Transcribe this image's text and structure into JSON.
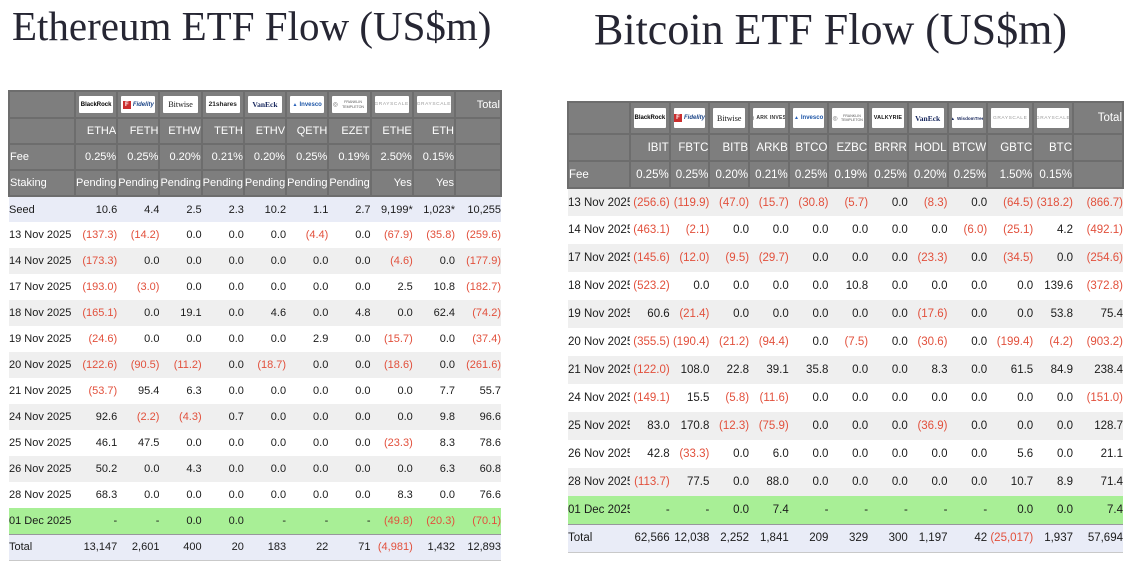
{
  "colors": {
    "header_bg": "#7e7e7e",
    "header_border": "#6d6d6d",
    "negative_red": "#e2503c",
    "row_alt_gray": "#efefef",
    "seed_total_lavender": "#e9ecf7",
    "highlight_green": "#a8ef96",
    "title_ink": "#262633"
  },
  "chart_data": [
    {
      "type": "table",
      "title": "Ethereum ETF Flow (US$m)",
      "total_header": "Total",
      "providers": [
        {
          "name": "BlackRock",
          "id": "blackrock"
        },
        {
          "name": "Fidelity",
          "id": "fidelity"
        },
        {
          "name": "Bitwise",
          "id": "bitwise"
        },
        {
          "name": "21shares",
          "id": "twentyone"
        },
        {
          "name": "VanEck",
          "id": "vaneck"
        },
        {
          "name": "Invesco",
          "id": "invesco"
        },
        {
          "name": "Franklin Templeton",
          "id": "franklin"
        },
        {
          "name": "Grayscale",
          "id": "grayscale"
        },
        {
          "name": "Grayscale",
          "id": "grayscale"
        }
      ],
      "tickers": [
        "ETHA",
        "FETH",
        "ETHW",
        "TETH",
        "ETHV",
        "QETH",
        "EZET",
        "ETHE",
        "ETH"
      ],
      "meta_rows": [
        {
          "label": "Fee",
          "values": [
            "0.25%",
            "0.25%",
            "0.20%",
            "0.21%",
            "0.20%",
            "0.25%",
            "0.19%",
            "2.50%",
            "0.15%"
          ],
          "total": ""
        },
        {
          "label": "Staking",
          "values": [
            "Pending",
            "Pending",
            "Pending",
            "Pending",
            "Pending",
            "Pending",
            "Pending",
            "Yes",
            "Yes"
          ],
          "total": ""
        }
      ],
      "rows": [
        {
          "label": "Seed",
          "values": [
            "10.6",
            "4.4",
            "2.5",
            "2.3",
            "10.2",
            "1.1",
            "2.7",
            "9,199*",
            "1,023*"
          ],
          "total": "10,255",
          "style": "seed"
        },
        {
          "label": "13 Nov 2025",
          "values": [
            "(137.3)",
            "(14.2)",
            "0.0",
            "0.0",
            "0.0",
            "(4.4)",
            "0.0",
            "(67.9)",
            "(35.8)"
          ],
          "total": "(259.6)"
        },
        {
          "label": "14 Nov 2025",
          "values": [
            "(173.3)",
            "0.0",
            "0.0",
            "0.0",
            "0.0",
            "0.0",
            "0.0",
            "(4.6)",
            "0.0"
          ],
          "total": "(177.9)"
        },
        {
          "label": "17 Nov 2025",
          "values": [
            "(193.0)",
            "(3.0)",
            "0.0",
            "0.0",
            "0.0",
            "0.0",
            "0.0",
            "2.5",
            "10.8"
          ],
          "total": "(182.7)"
        },
        {
          "label": "18 Nov 2025",
          "values": [
            "(165.1)",
            "0.0",
            "19.1",
            "0.0",
            "4.6",
            "0.0",
            "4.8",
            "0.0",
            "62.4"
          ],
          "total": "(74.2)"
        },
        {
          "label": "19 Nov 2025",
          "values": [
            "(24.6)",
            "0.0",
            "0.0",
            "0.0",
            "0.0",
            "2.9",
            "0.0",
            "(15.7)",
            "0.0"
          ],
          "total": "(37.4)"
        },
        {
          "label": "20 Nov 2025",
          "values": [
            "(122.6)",
            "(90.5)",
            "(11.2)",
            "0.0",
            "(18.7)",
            "0.0",
            "0.0",
            "(18.6)",
            "0.0"
          ],
          "total": "(261.6)"
        },
        {
          "label": "21 Nov 2025",
          "values": [
            "(53.7)",
            "95.4",
            "6.3",
            "0.0",
            "0.0",
            "0.0",
            "0.0",
            "0.0",
            "7.7"
          ],
          "total": "55.7"
        },
        {
          "label": "24 Nov 2025",
          "values": [
            "92.6",
            "(2.2)",
            "(4.3)",
            "0.7",
            "0.0",
            "0.0",
            "0.0",
            "0.0",
            "9.8"
          ],
          "total": "96.6"
        },
        {
          "label": "25 Nov 2025",
          "values": [
            "46.1",
            "47.5",
            "0.0",
            "0.0",
            "0.0",
            "0.0",
            "0.0",
            "(23.3)",
            "8.3"
          ],
          "total": "78.6"
        },
        {
          "label": "26 Nov 2025",
          "values": [
            "50.2",
            "0.0",
            "4.3",
            "0.0",
            "0.0",
            "0.0",
            "0.0",
            "0.0",
            "6.3"
          ],
          "total": "60.8"
        },
        {
          "label": "28 Nov 2025",
          "values": [
            "68.3",
            "0.0",
            "0.0",
            "0.0",
            "0.0",
            "0.0",
            "0.0",
            "8.3",
            "0.0"
          ],
          "total": "76.6"
        },
        {
          "label": "01 Dec 2025",
          "values": [
            "-",
            "-",
            "0.0",
            "0.0",
            "-",
            "-",
            "-",
            "(49.8)",
            "(20.3)"
          ],
          "total": "(70.1)",
          "style": "green"
        },
        {
          "label": "Total",
          "values": [
            "13,147",
            "2,601",
            "400",
            "20",
            "183",
            "22",
            "71",
            "(4,981)",
            "1,432"
          ],
          "total": "12,893",
          "style": "total"
        }
      ]
    },
    {
      "type": "table",
      "title": "Bitcoin ETF Flow (US$m)",
      "total_header": "Total",
      "providers": [
        {
          "name": "BlackRock",
          "id": "blackrock"
        },
        {
          "name": "Fidelity",
          "id": "fidelity"
        },
        {
          "name": "Bitwise",
          "id": "bitwise"
        },
        {
          "name": "ARK Invest",
          "id": "ark"
        },
        {
          "name": "Invesco",
          "id": "invesco"
        },
        {
          "name": "Franklin Templeton",
          "id": "franklin"
        },
        {
          "name": "Valkyrie",
          "id": "valkyrie"
        },
        {
          "name": "VanEck",
          "id": "vaneck"
        },
        {
          "name": "WisdomTree",
          "id": "wisdomtree"
        },
        {
          "name": "Grayscale",
          "id": "grayscale"
        },
        {
          "name": "Grayscale",
          "id": "grayscale"
        }
      ],
      "tickers": [
        "IBIT",
        "FBTC",
        "BITB",
        "ARKB",
        "BTCO",
        "EZBC",
        "BRRR",
        "HODL",
        "BTCW",
        "GBTC",
        "BTC"
      ],
      "meta_rows": [
        {
          "label": "Fee",
          "values": [
            "0.25%",
            "0.25%",
            "0.20%",
            "0.21%",
            "0.25%",
            "0.19%",
            "0.25%",
            "0.20%",
            "0.25%",
            "1.50%",
            "0.15%"
          ],
          "total": ""
        }
      ],
      "rows": [
        {
          "label": "13 Nov 2025",
          "values": [
            "(256.6)",
            "(119.9)",
            "(47.0)",
            "(15.7)",
            "(30.8)",
            "(5.7)",
            "0.0",
            "(8.3)",
            "0.0",
            "(64.5)",
            "(318.2)"
          ],
          "total": "(866.7)"
        },
        {
          "label": "14 Nov 2025",
          "values": [
            "(463.1)",
            "(2.1)",
            "0.0",
            "0.0",
            "0.0",
            "0.0",
            "0.0",
            "0.0",
            "(6.0)",
            "(25.1)",
            "4.2"
          ],
          "total": "(492.1)"
        },
        {
          "label": "17 Nov 2025",
          "values": [
            "(145.6)",
            "(12.0)",
            "(9.5)",
            "(29.7)",
            "0.0",
            "0.0",
            "0.0",
            "(23.3)",
            "0.0",
            "(34.5)",
            "0.0"
          ],
          "total": "(254.6)"
        },
        {
          "label": "18 Nov 2025",
          "values": [
            "(523.2)",
            "0.0",
            "0.0",
            "0.0",
            "0.0",
            "10.8",
            "0.0",
            "0.0",
            "0.0",
            "0.0",
            "139.6"
          ],
          "total": "(372.8)"
        },
        {
          "label": "19 Nov 2025",
          "values": [
            "60.6",
            "(21.4)",
            "0.0",
            "0.0",
            "0.0",
            "0.0",
            "0.0",
            "(17.6)",
            "0.0",
            "0.0",
            "53.8"
          ],
          "total": "75.4"
        },
        {
          "label": "20 Nov 2025",
          "values": [
            "(355.5)",
            "(190.4)",
            "(21.2)",
            "(94.4)",
            "0.0",
            "(7.5)",
            "0.0",
            "(30.6)",
            "0.0",
            "(199.4)",
            "(4.2)"
          ],
          "total": "(903.2)"
        },
        {
          "label": "21 Nov 2025",
          "values": [
            "(122.0)",
            "108.0",
            "22.8",
            "39.1",
            "35.8",
            "0.0",
            "0.0",
            "8.3",
            "0.0",
            "61.5",
            "84.9"
          ],
          "total": "238.4"
        },
        {
          "label": "24 Nov 2025",
          "values": [
            "(149.1)",
            "15.5",
            "(5.8)",
            "(11.6)",
            "0.0",
            "0.0",
            "0.0",
            "0.0",
            "0.0",
            "0.0",
            "0.0"
          ],
          "total": "(151.0)"
        },
        {
          "label": "25 Nov 2025",
          "values": [
            "83.0",
            "170.8",
            "(12.3)",
            "(75.9)",
            "0.0",
            "0.0",
            "0.0",
            "(36.9)",
            "0.0",
            "0.0",
            "0.0"
          ],
          "total": "128.7"
        },
        {
          "label": "26 Nov 2025",
          "values": [
            "42.8",
            "(33.3)",
            "0.0",
            "6.0",
            "0.0",
            "0.0",
            "0.0",
            "0.0",
            "0.0",
            "5.6",
            "0.0"
          ],
          "total": "21.1"
        },
        {
          "label": "28 Nov 2025",
          "values": [
            "(113.7)",
            "77.5",
            "0.0",
            "88.0",
            "0.0",
            "0.0",
            "0.0",
            "0.0",
            "0.0",
            "10.7",
            "8.9"
          ],
          "total": "71.4"
        },
        {
          "label": "01 Dec 2025",
          "values": [
            "-",
            "-",
            "0.0",
            "7.4",
            "-",
            "-",
            "-",
            "-",
            "-",
            "0.0",
            "0.0"
          ],
          "total": "7.4",
          "style": "green"
        },
        {
          "label": "Total",
          "values": [
            "62,566",
            "12,038",
            "2,252",
            "1,841",
            "209",
            "329",
            "300",
            "1,197",
            "42",
            "(25,017)",
            "1,937"
          ],
          "total": "57,694",
          "style": "total"
        }
      ]
    }
  ]
}
